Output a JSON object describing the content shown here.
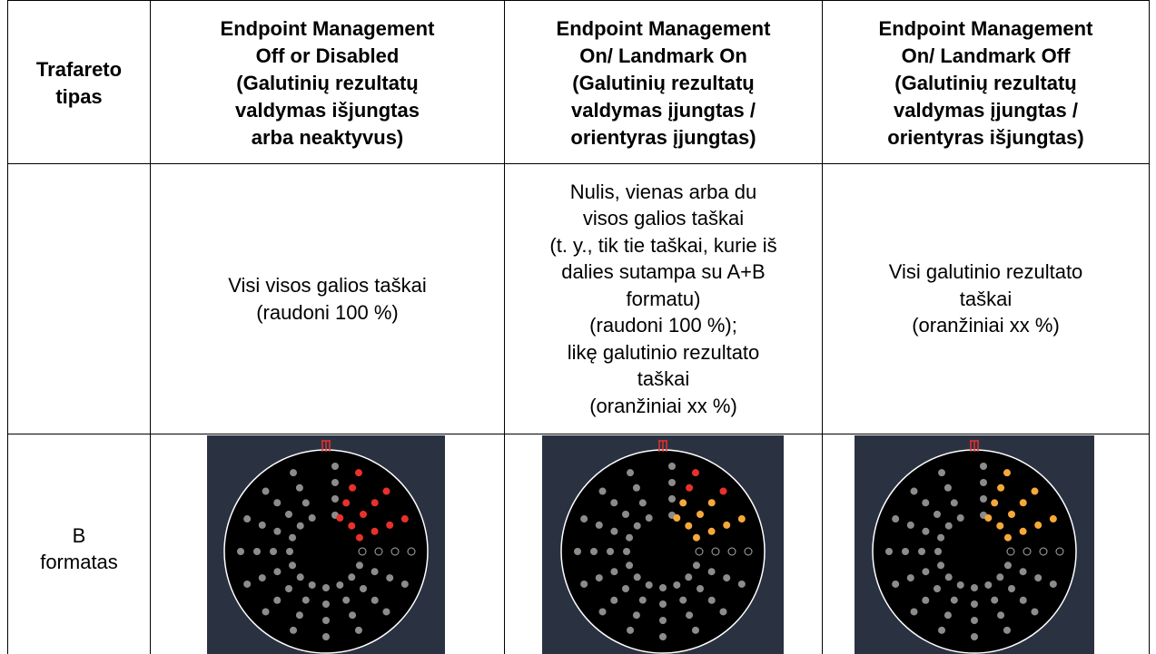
{
  "table": {
    "header": [
      [
        "Trafareto",
        "tipas"
      ],
      [
        "Endpoint Management",
        "Off or Disabled",
        "(Galutinių rezultatų",
        "valdymas išjungtas",
        "arba neaktyvus)"
      ],
      [
        "Endpoint Management",
        "On/ Landmark On",
        "(Galutinių rezultatų",
        "valdymas įjungtas /",
        "orientyras įjungtas)"
      ],
      [
        "Endpoint Management",
        "On/ Landmark Off",
        "(Galutinių rezultatų",
        "valdymas įjungtas /",
        "orientyras išjungtas)"
      ]
    ],
    "description_row": [
      [
        "Visi visos galios taškai",
        "(raudoni 100 %)"
      ],
      [
        "Nulis, vienas arba du",
        "visos galios taškai",
        "(t. y., tik tie taškai, kurie iš",
        "dalies sutampa su A+B",
        "formatu)",
        "(raudoni 100 %);",
        "likę galutinio rezultato",
        "taškai",
        "(oranžiniai xx %)"
      ],
      [
        "Visi galutinio rezultato",
        "taškai",
        "(oranžiniai xx %)"
      ]
    ],
    "image_row_label": [
      "B",
      "formatas"
    ]
  }
}
